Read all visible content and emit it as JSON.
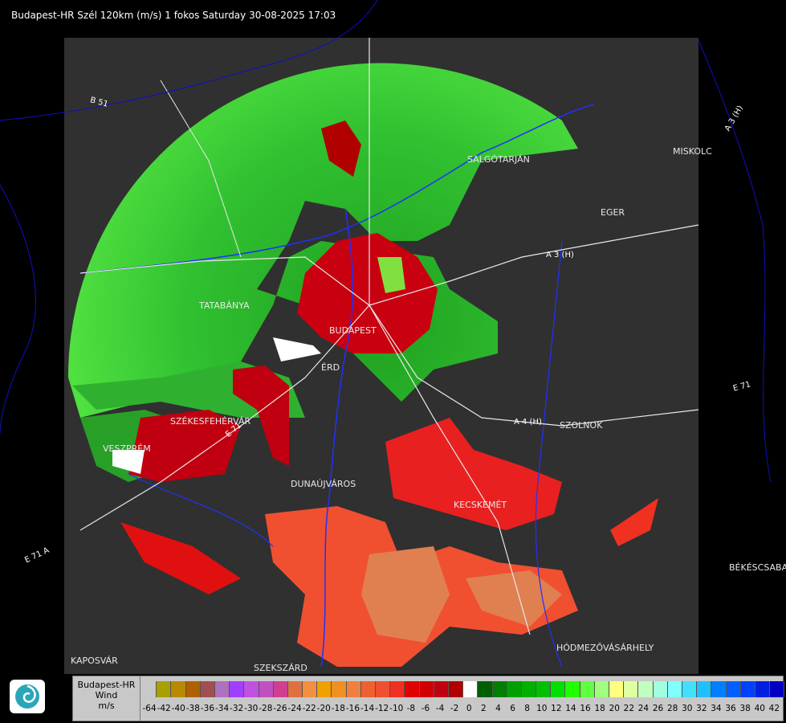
{
  "title": "Budapest-HR Szél 120km (m/s) 1 fokos Saturday 30-08-2025 17:03",
  "cities": [
    {
      "name": "SALGÓTARJÁN"
    },
    {
      "name": "MISKOLC"
    },
    {
      "name": "EGER"
    },
    {
      "name": "TATABÁNYA"
    },
    {
      "name": "BUDAPEST"
    },
    {
      "name": "ÉRD"
    },
    {
      "name": "SZÉKESFEHÉRVÁR"
    },
    {
      "name": "VESZPRÉM"
    },
    {
      "name": "DUNAÚJVÁROS"
    },
    {
      "name": "KECSKEMÉT"
    },
    {
      "name": "SZOLNOK"
    },
    {
      "name": "BÉKÉSCSABA"
    },
    {
      "name": "HÓDMEZŐVÁSÁRHELY"
    },
    {
      "name": "SZEKSZÁRD"
    },
    {
      "name": "KAPOSVÁR"
    }
  ],
  "roads": [
    {
      "name": "B 51"
    },
    {
      "name": "A 3 (H)"
    },
    {
      "name": "A 3 (H)"
    },
    {
      "name": "E 71"
    },
    {
      "name": "A 4 (H)"
    },
    {
      "name": "E 71 A"
    },
    {
      "name": "E 71"
    }
  ],
  "legend": {
    "title_lines": [
      "Budapest-HR",
      "Wind",
      "m/s"
    ],
    "ticks": [
      "-64",
      "-42",
      "-40",
      "-38",
      "-36",
      "-34",
      "-32",
      "-30",
      "-28",
      "-26",
      "-24",
      "-22",
      "-20",
      "-18",
      "-16",
      "-14",
      "-12",
      "-10",
      "-8",
      "-6",
      "-4",
      "-2",
      "0",
      "2",
      "4",
      "6",
      "8",
      "10",
      "12",
      "14",
      "16",
      "18",
      "20",
      "22",
      "24",
      "26",
      "28",
      "30",
      "32",
      "34",
      "36",
      "38",
      "40",
      "42"
    ],
    "colors": [
      "#c8c8c8",
      "#a8a000",
      "#b88800",
      "#b06000",
      "#a05050",
      "#b070c0",
      "#a040ff",
      "#c050e0",
      "#c050c0",
      "#d04090",
      "#e07040",
      "#f09040",
      "#f0a000",
      "#f09020",
      "#f08040",
      "#f06030",
      "#f05030",
      "#f03020",
      "#e00000",
      "#d00000",
      "#c00010",
      "#b00000",
      "#ffffff",
      "#006000",
      "#008000",
      "#00a000",
      "#00b000",
      "#00c000",
      "#00e000",
      "#20ff00",
      "#60ff40",
      "#a0ff80",
      "#ffff80",
      "#e0ffa0",
      "#c0ffc0",
      "#a0ffe0",
      "#80ffff",
      "#40e0ff",
      "#20c0ff",
      "#0080ff",
      "#0060ff",
      "#0040ff",
      "#0020e0",
      "#0000c0"
    ]
  }
}
